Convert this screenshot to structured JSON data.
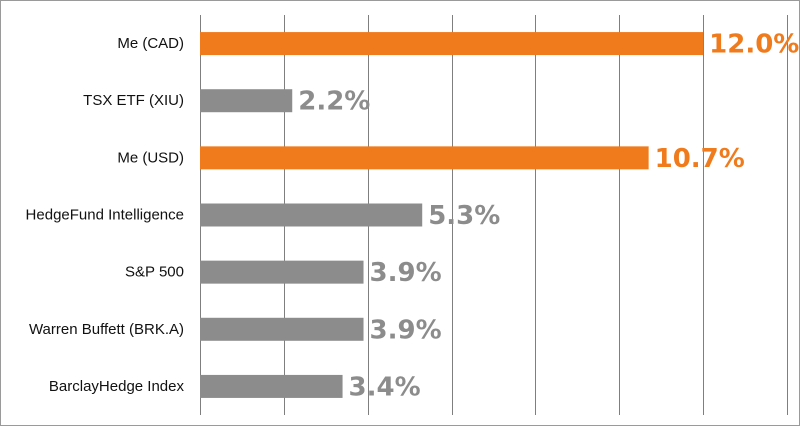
{
  "chart_data": {
    "type": "bar",
    "orientation": "horizontal",
    "categories": [
      "Me (CAD)",
      "TSX ETF (XIU)",
      "Me (USD)",
      "HedgeFund Intelligence",
      "S&P 500",
      "Warren Buffett (BRK.A)",
      "BarclayHedge Index"
    ],
    "values": [
      12.0,
      2.2,
      10.7,
      5.3,
      3.9,
      3.9,
      3.4
    ],
    "value_labels": [
      "12.0%",
      "2.2%",
      "10.7%",
      "5.3%",
      "3.9%",
      "3.9%",
      "3.4%"
    ],
    "highlighted": [
      true,
      false,
      true,
      false,
      false,
      false,
      false
    ],
    "xlim": [
      0,
      14
    ],
    "x_gridline_step": 2,
    "grid": true,
    "legend": "none",
    "title": "",
    "xlabel": "",
    "ylabel": "",
    "colors": {
      "highlight": "#f07b1d",
      "default": "#8c8c8c",
      "gridline": "#7f7f7f"
    }
  }
}
